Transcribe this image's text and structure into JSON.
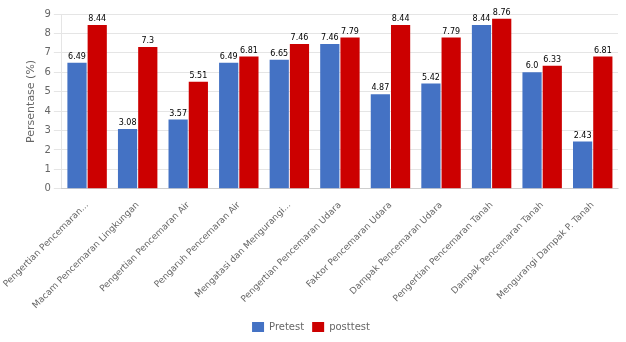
{
  "chart_data": {
    "type": "bar",
    "categories": [
      "Pengertian Pencemaran...",
      "Macam Pencemaran Lingkungan",
      "Pengertian Pencemaran Air",
      "Pengaruh Pencemaran Air",
      "Mengatasi dan Mengurangi...",
      "Pengertian Pencemaran Udara",
      "Faktor Pencemaran Udara",
      "Dampak Pencemaran Udara",
      "Pengertian Pencemaran Tanah",
      "Dampak Pencemaran Tanah",
      "Mengurangi Dampak P. Tanah"
    ],
    "series": [
      {
        "name": "Pretest",
        "color": "#4472C4",
        "values": [
          6.49,
          3.08,
          3.57,
          6.49,
          6.65,
          7.46,
          4.87,
          5.42,
          8.44,
          6.0,
          2.43
        ],
        "value_labels": [
          "6.49",
          "3.08",
          "3.57",
          "6.49",
          "6.65",
          "7.46",
          "4.87",
          "5.42",
          "8.44",
          "6.0",
          "2.43"
        ]
      },
      {
        "name": "posttest",
        "color": "#CC0000",
        "values": [
          8.44,
          7.3,
          5.51,
          6.81,
          7.46,
          7.79,
          8.44,
          7.79,
          8.76,
          6.33,
          6.81
        ]
      }
    ],
    "y_label": "Persentase (%)",
    "ylim": [
      0,
      9
    ],
    "yticks": [
      0,
      1,
      2,
      3,
      4,
      5,
      6,
      7,
      8,
      9
    ],
    "grid": true,
    "legend": "bottom",
    "data_labels": true
  }
}
